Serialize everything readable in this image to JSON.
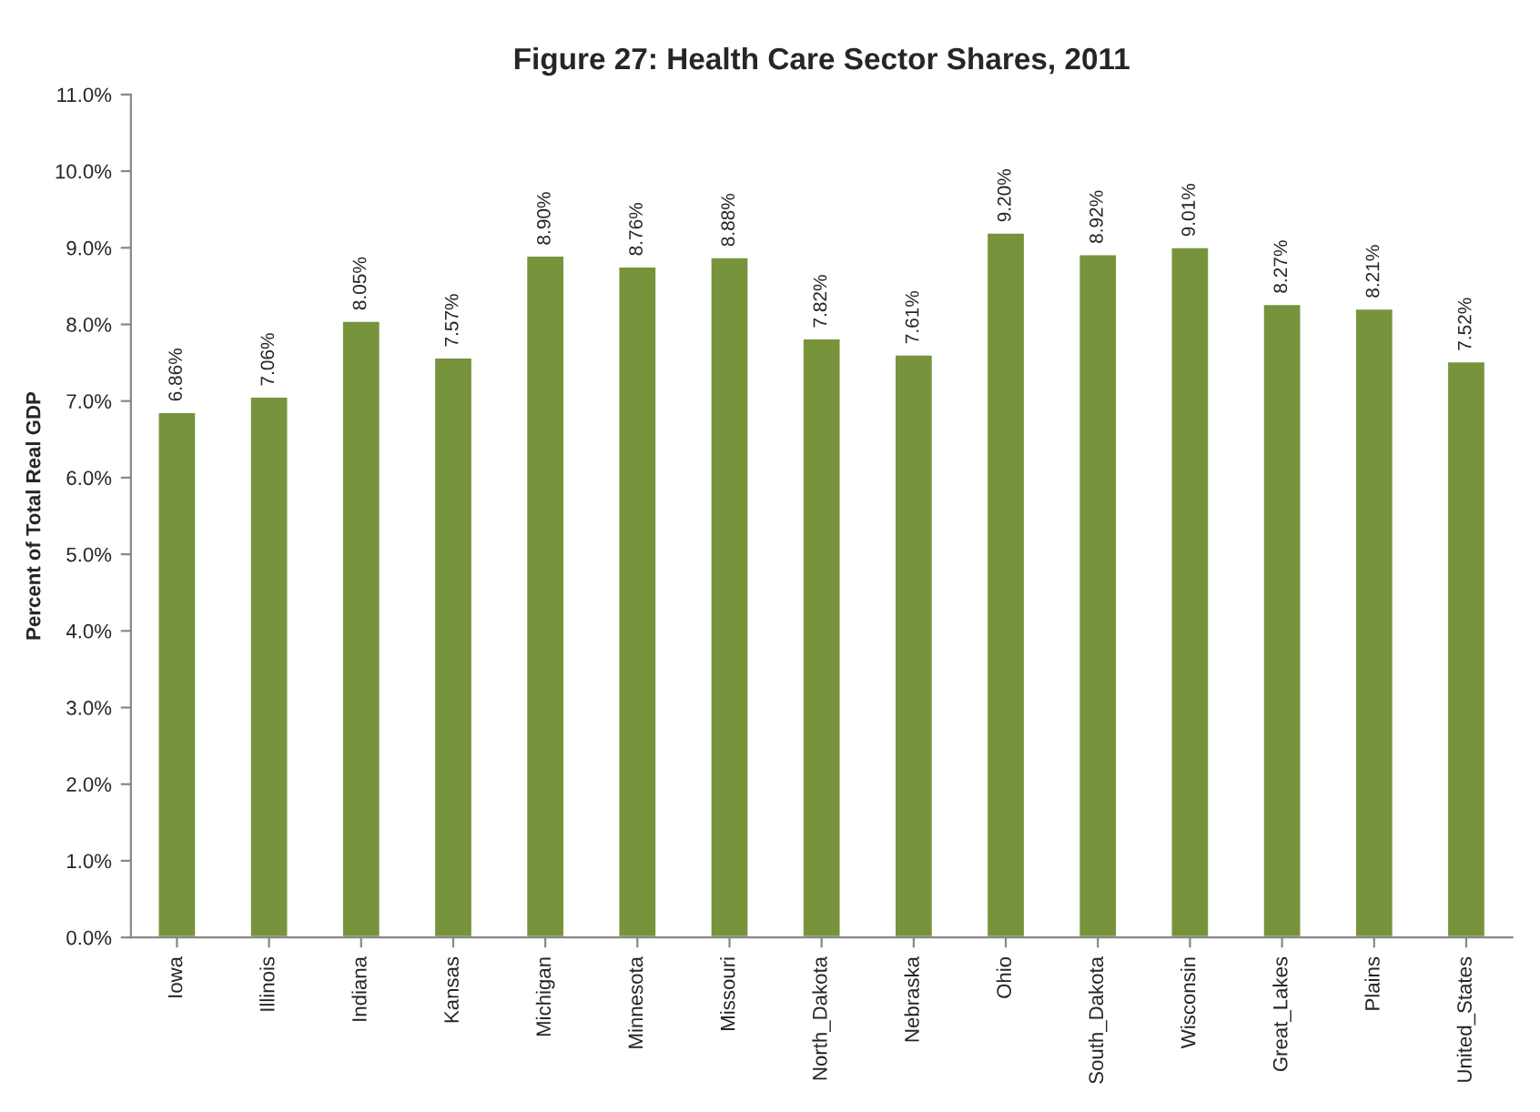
{
  "chart_data": {
    "type": "bar",
    "title": "Figure 27: Health Care Sector Shares, 2011",
    "ylabel": "Percent of Total Real GDP",
    "categories": [
      "Iowa",
      "Illinois",
      "Indiana",
      "Kansas",
      "Michigan",
      "Minnesota",
      "Missouri",
      "North_Dakota",
      "Nebraska",
      "Ohio",
      "South_Dakota",
      "Wisconsin",
      "Great_Lakes",
      "Plains",
      "United_States"
    ],
    "values": [
      6.86,
      7.06,
      8.05,
      7.57,
      8.9,
      8.76,
      8.88,
      7.82,
      7.61,
      9.2,
      8.92,
      9.01,
      8.27,
      8.21,
      7.52
    ],
    "value_labels": [
      "6.86%",
      "7.06%",
      "8.05%",
      "7.57%",
      "8.90%",
      "8.76%",
      "8.88%",
      "7.82%",
      "7.61%",
      "9.20%",
      "8.92%",
      "9.01%",
      "8.27%",
      "8.21%",
      "7.52%"
    ],
    "color": "#77933c",
    "ylim": [
      0,
      11
    ],
    "yticks": [
      {
        "value": 0,
        "label": "0.0%"
      },
      {
        "value": 1,
        "label": "1.0%"
      },
      {
        "value": 2,
        "label": "2.0%"
      },
      {
        "value": 3,
        "label": "3.0%"
      },
      {
        "value": 4,
        "label": "4.0%"
      },
      {
        "value": 5,
        "label": "5.0%"
      },
      {
        "value": 6,
        "label": "6.0%"
      },
      {
        "value": 7,
        "label": "7.0%"
      },
      {
        "value": 8,
        "label": "8.0%"
      },
      {
        "value": 9,
        "label": "9.0%"
      },
      {
        "value": 10,
        "label": "10.0%"
      },
      {
        "value": 11,
        "label": "11.0%"
      }
    ],
    "grid": false,
    "legend": false
  }
}
